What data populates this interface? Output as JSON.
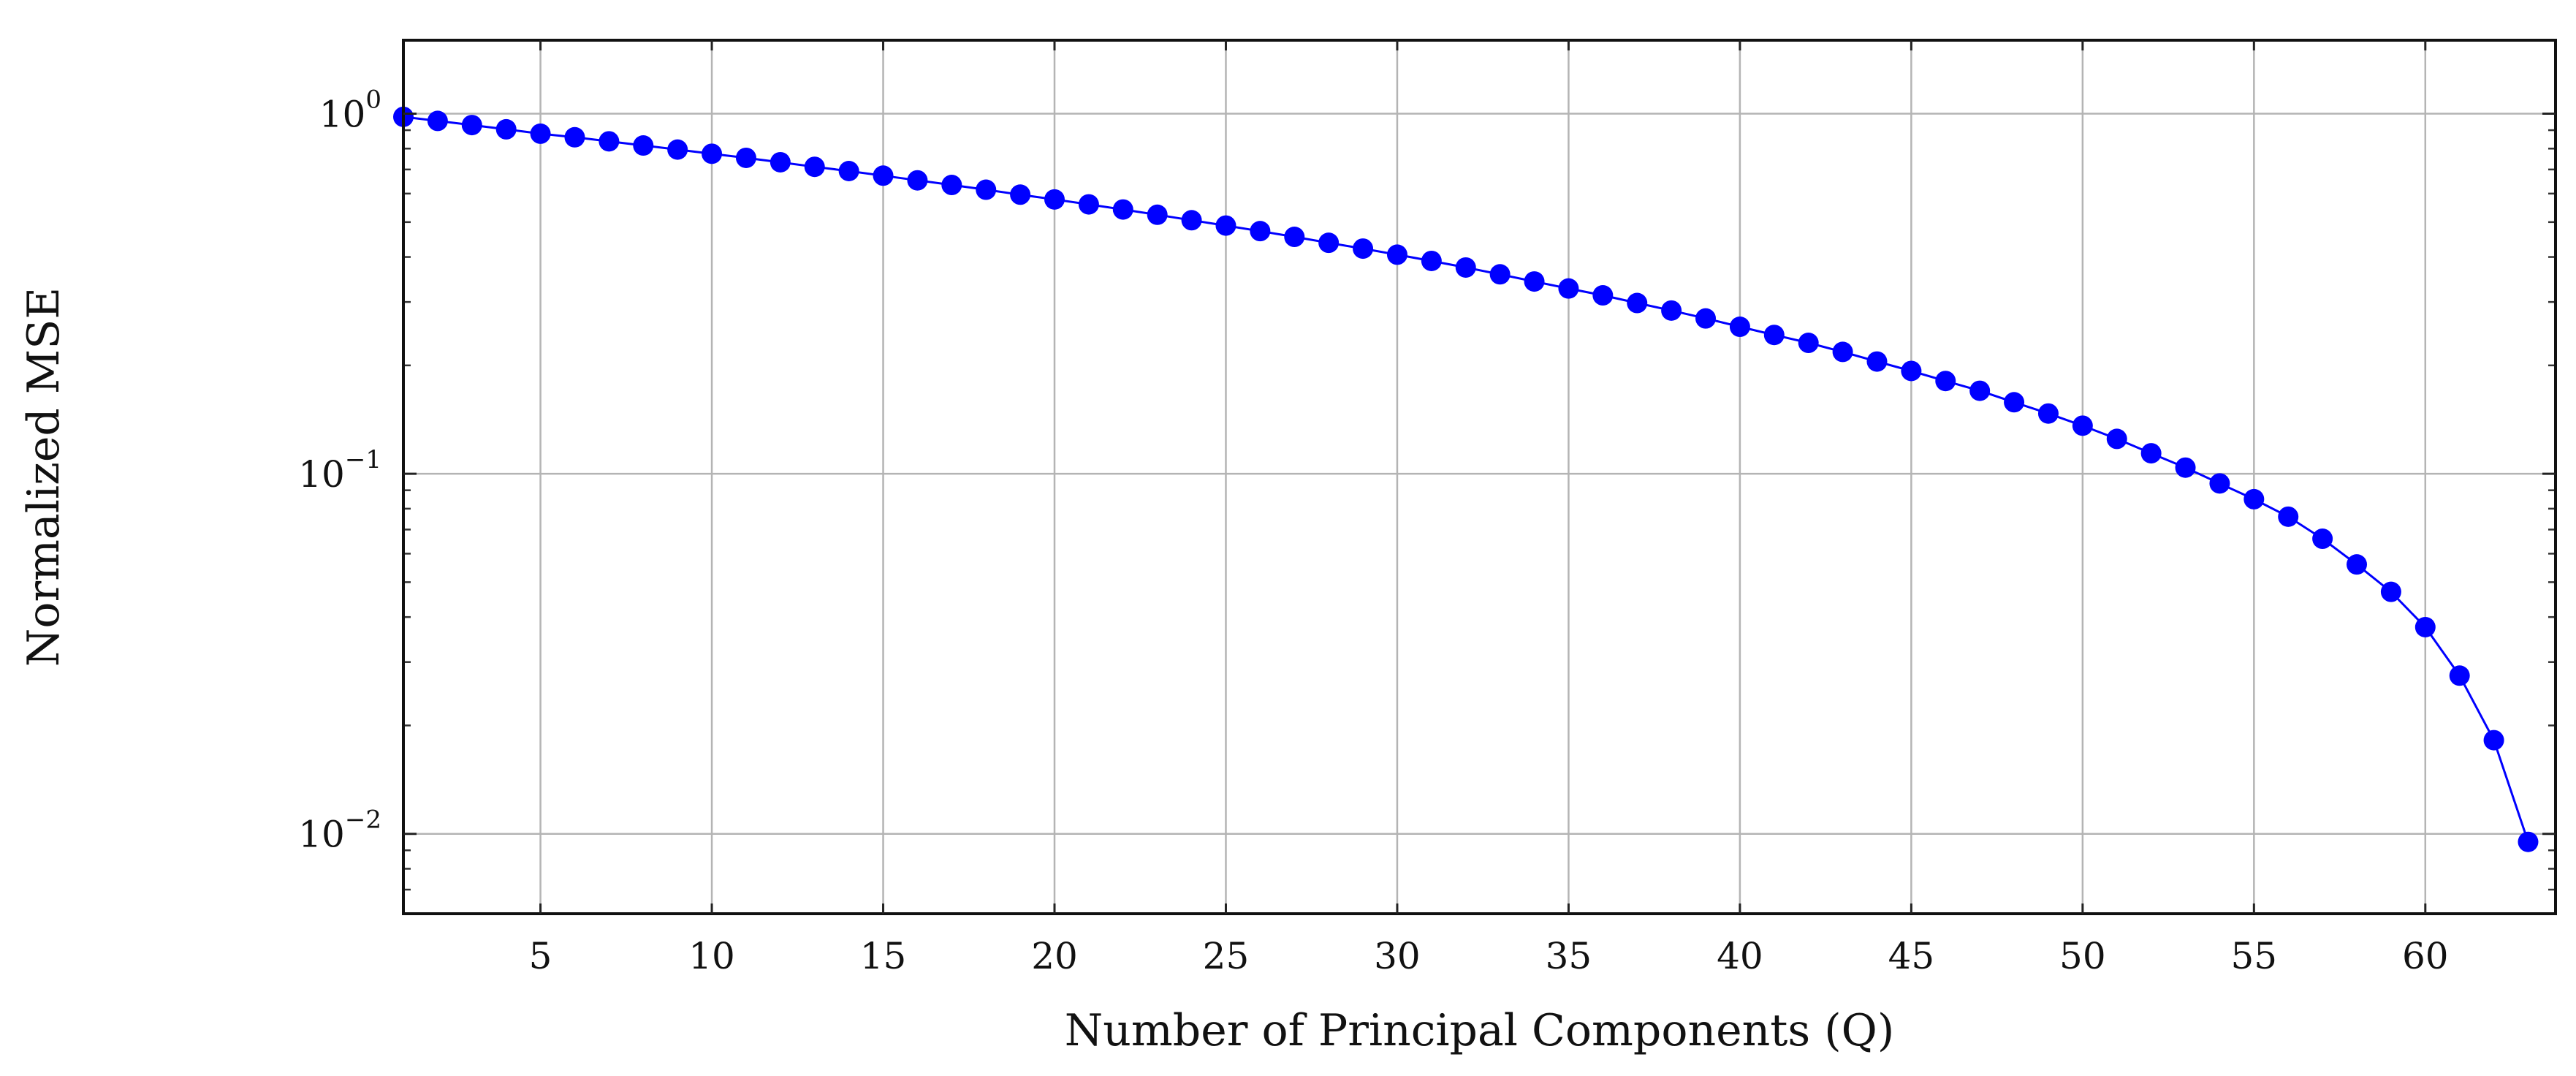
{
  "chart_data": {
    "type": "line",
    "title": "",
    "xlabel": "Number of Principal Components (Q)",
    "ylabel": "Normalized MSE",
    "y_scale": "log",
    "xlim": [
      1,
      63.8
    ],
    "ylim": [
      0.006,
      1.6
    ],
    "grid": true,
    "legend": "none",
    "x_ticks": [
      5,
      10,
      15,
      20,
      25,
      30,
      35,
      40,
      45,
      50,
      55,
      60
    ],
    "y_ticks": [
      {
        "value": 1,
        "base": "10",
        "exp": "0"
      },
      {
        "value": 0.1,
        "base": "10",
        "exp": "−1"
      },
      {
        "value": 0.01,
        "base": "10",
        "exp": "−2"
      }
    ],
    "series": [
      {
        "color": "#0000ff",
        "marker": "circle",
        "x": [
          1,
          2,
          3,
          4,
          5,
          6,
          7,
          8,
          9,
          10,
          11,
          12,
          13,
          14,
          15,
          16,
          17,
          18,
          19,
          20,
          21,
          22,
          23,
          24,
          25,
          26,
          27,
          28,
          29,
          30,
          31,
          32,
          33,
          34,
          35,
          36,
          37,
          38,
          39,
          40,
          41,
          42,
          43,
          44,
          45,
          46,
          47,
          48,
          49,
          50,
          51,
          52,
          53,
          54,
          55,
          56,
          57,
          58,
          59,
          60,
          61,
          62,
          63
        ],
        "values": [
          0.98,
          0.955,
          0.93,
          0.905,
          0.88,
          0.86,
          0.838,
          0.816,
          0.795,
          0.774,
          0.754,
          0.733,
          0.712,
          0.693,
          0.673,
          0.653,
          0.634,
          0.615,
          0.596,
          0.578,
          0.56,
          0.542,
          0.524,
          0.506,
          0.489,
          0.472,
          0.455,
          0.438,
          0.422,
          0.406,
          0.39,
          0.374,
          0.358,
          0.342,
          0.327,
          0.313,
          0.298,
          0.284,
          0.27,
          0.256,
          0.243,
          0.231,
          0.218,
          0.205,
          0.193,
          0.181,
          0.17,
          0.158,
          0.147,
          0.136,
          0.125,
          0.114,
          0.104,
          0.094,
          0.085,
          0.076,
          0.066,
          0.056,
          0.047,
          0.0375,
          0.0275,
          0.0182,
          0.0095
        ]
      }
    ]
  }
}
